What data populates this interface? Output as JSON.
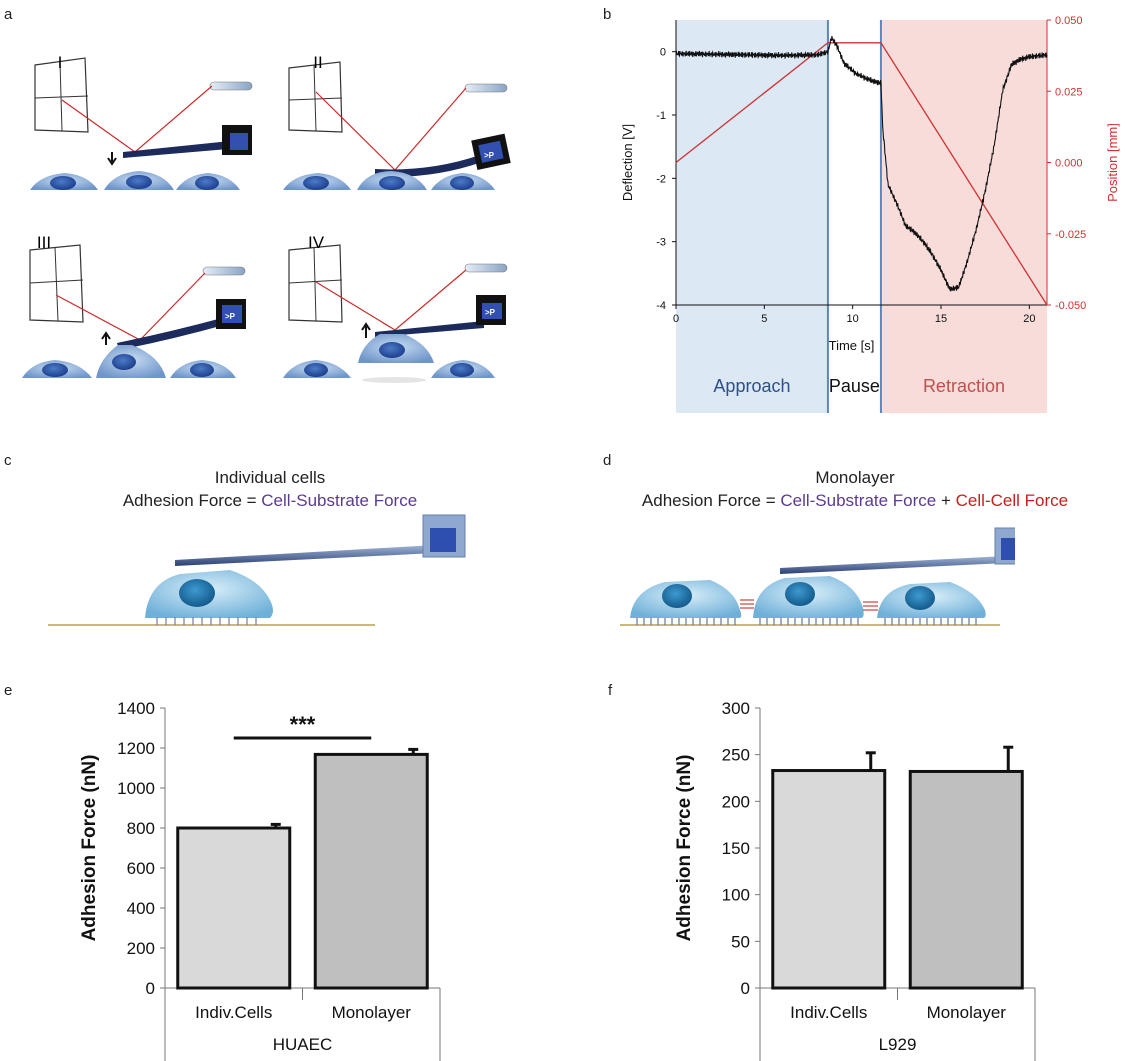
{
  "panel_labels": {
    "a": "a",
    "b": "b",
    "c": "c",
    "d": "d",
    "e": "e",
    "f": "f"
  },
  "panel_a": {
    "steps": [
      "I",
      "II",
      "III",
      "IV"
    ],
    "cantilever_label": ">P"
  },
  "panel_c": {
    "title": "Individual cells",
    "eq_left": "Adhesion Force =",
    "eq_term": "Cell-Substrate Force"
  },
  "panel_d": {
    "title": "Monolayer",
    "eq_left": "Adhesion Force =",
    "eq_term1": "Cell-Substrate Force",
    "plus": "+",
    "eq_term2": "Cell-Cell Force"
  },
  "chart_data": [
    {
      "type": "line",
      "panel": "b",
      "xlabel": "Time [s]",
      "ylabel": "Deflection [V]",
      "y2label": "Position [mm]",
      "xlim": [
        0,
        21
      ],
      "ylim": [
        -4,
        0.5
      ],
      "y2lim": [
        -0.05,
        0.05
      ],
      "x_ticks": [
        "0",
        "5",
        "10",
        "15",
        "20"
      ],
      "y_ticks": [
        "0",
        "-1",
        "-2",
        "-3",
        "-4"
      ],
      "y2_ticks": [
        "0.050",
        "0.025",
        "0.000",
        "-0.025",
        "-0.050"
      ],
      "phases": [
        {
          "name": "Approach",
          "start": 0,
          "end": 8.6,
          "color": "#dce8f4"
        },
        {
          "name": "Pause",
          "start": 8.6,
          "end": 11.6,
          "color": "#ffffff"
        },
        {
          "name": "Retraction",
          "start": 11.6,
          "end": 21,
          "color": "#f8dcda"
        }
      ],
      "series": [
        {
          "axis": "left",
          "color": "#111111",
          "x": [
            0,
            2,
            4,
            6,
            8,
            8.6,
            8.8,
            9.1,
            9.5,
            10.2,
            11.0,
            11.6,
            11.7,
            12.0,
            12.5,
            13.0,
            13.5,
            14.0,
            14.5,
            15.0,
            15.5,
            16.0,
            16.5,
            17.0,
            17.5,
            18.0,
            18.5,
            19.0,
            19.5,
            20.0,
            21.0
          ],
          "y": [
            -0.03,
            -0.04,
            -0.05,
            -0.06,
            -0.05,
            0.0,
            0.22,
            0.1,
            -0.18,
            -0.35,
            -0.45,
            -0.5,
            -1.2,
            -2.1,
            -2.4,
            -2.75,
            -2.85,
            -3.0,
            -3.2,
            -3.45,
            -3.75,
            -3.72,
            -3.3,
            -2.8,
            -2.2,
            -1.5,
            -0.6,
            -0.2,
            -0.12,
            -0.08,
            -0.05
          ]
        },
        {
          "axis": "right",
          "color": "#d03030",
          "x": [
            0,
            8.6,
            11.6,
            21
          ],
          "y": [
            0.0,
            0.042,
            0.042,
            -0.05
          ]
        }
      ]
    },
    {
      "type": "bar",
      "panel": "e",
      "ylabel": "Adhesion Force (nN)",
      "group_label": "HUAEC",
      "categories": [
        "Indiv.Cells",
        "Monolayer"
      ],
      "values": [
        800,
        1168
      ],
      "errors": [
        18,
        25
      ],
      "ylim": [
        0,
        1400
      ],
      "y_ticks": [
        "0",
        "200",
        "400",
        "600",
        "800",
        "1000",
        "1200",
        "1400"
      ],
      "significance": "***",
      "bar_colors": [
        "#d9d9d9",
        "#bfbfbf"
      ]
    },
    {
      "type": "bar",
      "panel": "f",
      "ylabel": "Adhesion Force (nN)",
      "group_label": "L929",
      "categories": [
        "Indiv.Cells",
        "Monolayer"
      ],
      "values": [
        233,
        232
      ],
      "errors": [
        19,
        26
      ],
      "ylim": [
        0,
        300
      ],
      "y_ticks": [
        "0",
        "50",
        "100",
        "150",
        "200",
        "250",
        "300"
      ],
      "bar_colors": [
        "#d9d9d9",
        "#bfbfbf"
      ]
    }
  ]
}
